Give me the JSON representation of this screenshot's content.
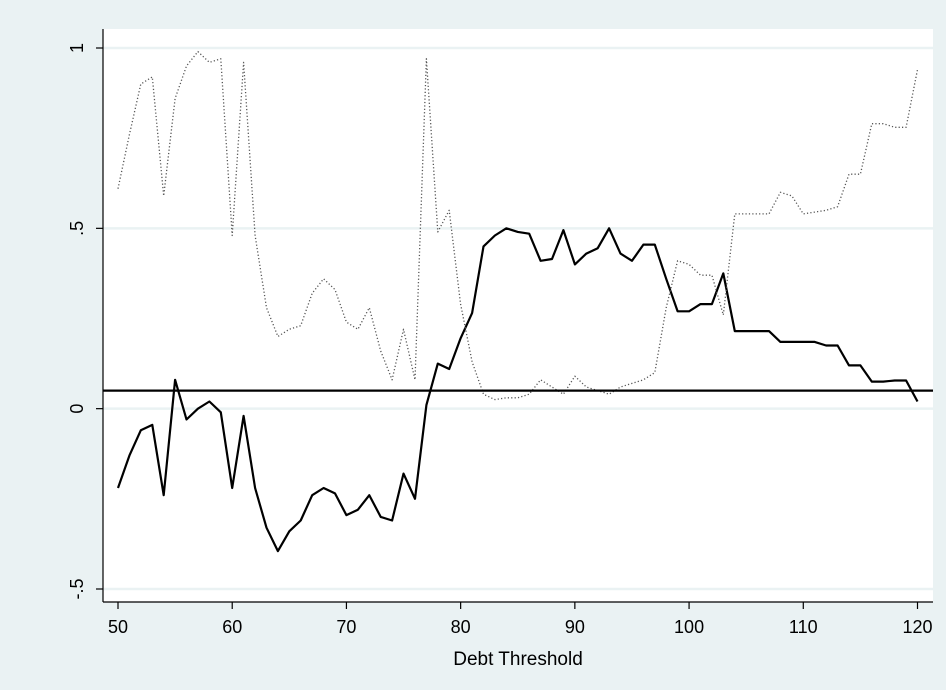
{
  "chart_data": {
    "type": "line",
    "title": "",
    "xlabel": "Debt Threshold",
    "ylabel": "",
    "xlim": [
      50,
      120
    ],
    "ylim": [
      -0.5,
      1
    ],
    "grid": true,
    "legend": "none",
    "x_ticks": [
      50,
      60,
      70,
      80,
      90,
      100,
      110,
      120
    ],
    "x_tick_labels": [
      "50",
      "60",
      "70",
      "80",
      "90",
      "100",
      "110",
      "120"
    ],
    "y_ticks": [
      -0.5,
      0,
      0.5,
      1
    ],
    "y_tick_labels": [
      "-.5",
      "0",
      ".5",
      "1"
    ],
    "reference_line": {
      "y": 0.05
    },
    "colors": {
      "background": "#eaf2f3",
      "plot_background": "#ffffff",
      "grid": "#eaf2f3",
      "line": "#000000",
      "dotted": "#555555"
    },
    "x": [
      50,
      51,
      52,
      53,
      54,
      55,
      56,
      57,
      58,
      59,
      60,
      61,
      62,
      63,
      64,
      65,
      66,
      67,
      68,
      69,
      70,
      71,
      72,
      73,
      74,
      75,
      76,
      77,
      78,
      79,
      80,
      81,
      82,
      83,
      84,
      85,
      86,
      87,
      88,
      89,
      90,
      91,
      92,
      93,
      94,
      95,
      96,
      97,
      98,
      99,
      100,
      101,
      102,
      103,
      104,
      105,
      106,
      107,
      108,
      109,
      110,
      111,
      112,
      113,
      114,
      115,
      116,
      117,
      118,
      119,
      120
    ],
    "series": [
      {
        "style": "solid",
        "values": [
          -0.22,
          -0.13,
          -0.06,
          -0.045,
          -0.24,
          0.08,
          -0.03,
          0.0,
          0.02,
          -0.01,
          -0.22,
          -0.02,
          -0.22,
          -0.33,
          -0.395,
          -0.34,
          -0.31,
          -0.24,
          -0.22,
          -0.235,
          -0.295,
          -0.28,
          -0.24,
          -0.3,
          -0.31,
          -0.18,
          -0.25,
          0.01,
          0.125,
          0.11,
          0.195,
          0.265,
          0.45,
          0.48,
          0.5,
          0.49,
          0.485,
          0.41,
          0.415,
          0.495,
          0.4,
          0.43,
          0.445,
          0.5,
          0.43,
          0.41,
          0.455,
          0.455,
          0.36,
          0.27,
          0.27,
          0.29,
          0.29,
          0.375,
          0.215,
          0.215,
          0.215,
          0.215,
          0.185,
          0.185,
          0.185,
          0.185,
          0.175,
          0.175,
          0.12,
          0.12,
          0.075,
          0.075,
          0.078,
          0.078,
          0.02
        ]
      },
      {
        "style": "dotted",
        "values": [
          0.61,
          0.76,
          0.9,
          0.92,
          0.59,
          0.86,
          0.95,
          0.99,
          0.96,
          0.97,
          0.48,
          0.96,
          0.48,
          0.28,
          0.2,
          0.22,
          0.23,
          0.32,
          0.36,
          0.33,
          0.24,
          0.22,
          0.28,
          0.16,
          0.08,
          0.22,
          0.08,
          0.97,
          0.49,
          0.55,
          0.29,
          0.13,
          0.04,
          0.025,
          0.03,
          0.03,
          0.04,
          0.08,
          0.06,
          0.04,
          0.09,
          0.06,
          0.05,
          0.04,
          0.06,
          0.07,
          0.08,
          0.1,
          0.28,
          0.41,
          0.4,
          0.37,
          0.37,
          0.26,
          0.54,
          0.54,
          0.54,
          0.54,
          0.6,
          0.59,
          0.54,
          0.545,
          0.55,
          0.56,
          0.65,
          0.65,
          0.79,
          0.79,
          0.78,
          0.78,
          0.94
        ]
      }
    ]
  }
}
